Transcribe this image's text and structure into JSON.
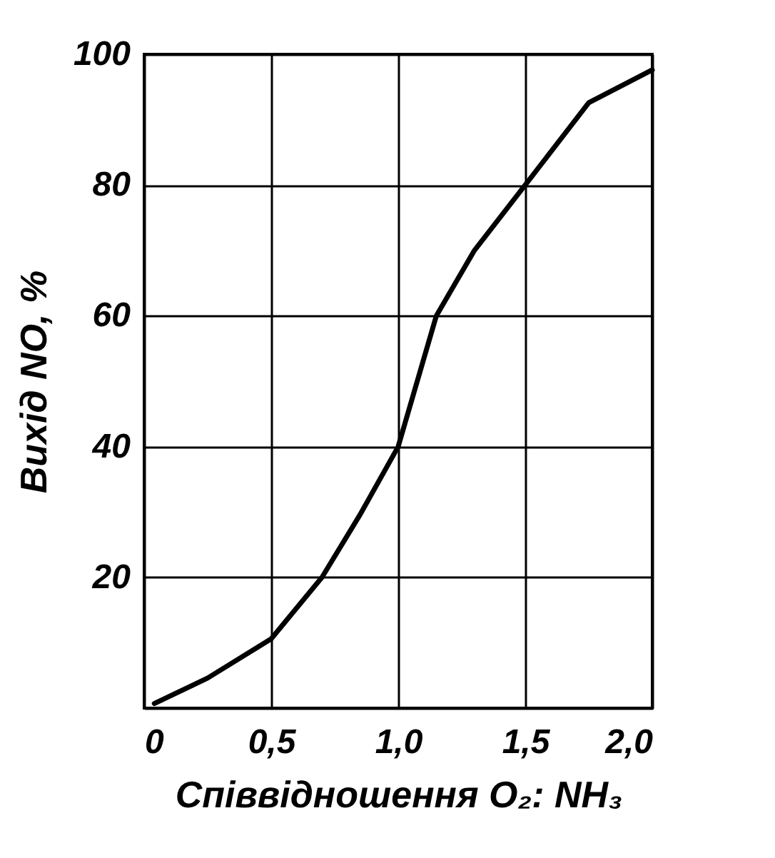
{
  "chart_data": {
    "type": "line",
    "xlabel": "Співвідношення O₂: NH₃",
    "ylabel": "Вихід NO, %",
    "x": [
      0.04,
      0.25,
      0.5,
      0.7,
      0.85,
      1.0,
      1.15,
      1.3,
      1.5,
      1.75,
      2.0
    ],
    "series": [
      {
        "color": "#000000",
        "values": [
          0.7,
          4.6,
          10.6,
          20,
          29.6,
          40,
          60,
          70,
          80,
          92.6,
          97.6
        ]
      }
    ],
    "xlim": [
      0,
      2
    ],
    "xticks": [
      {
        "value": 0,
        "label": "0"
      },
      {
        "value": 0.5,
        "label": "0,5"
      },
      {
        "value": 1,
        "label": "1,0"
      },
      {
        "value": 1.5,
        "label": "1,5"
      },
      {
        "value": 2,
        "label": "2,0"
      }
    ],
    "ylim": [
      0,
      100
    ],
    "yticks": [
      {
        "value": 0,
        "label": null
      },
      20,
      40,
      60,
      80,
      100
    ],
    "grid": true,
    "marker": "none",
    "line_style": "solid"
  }
}
